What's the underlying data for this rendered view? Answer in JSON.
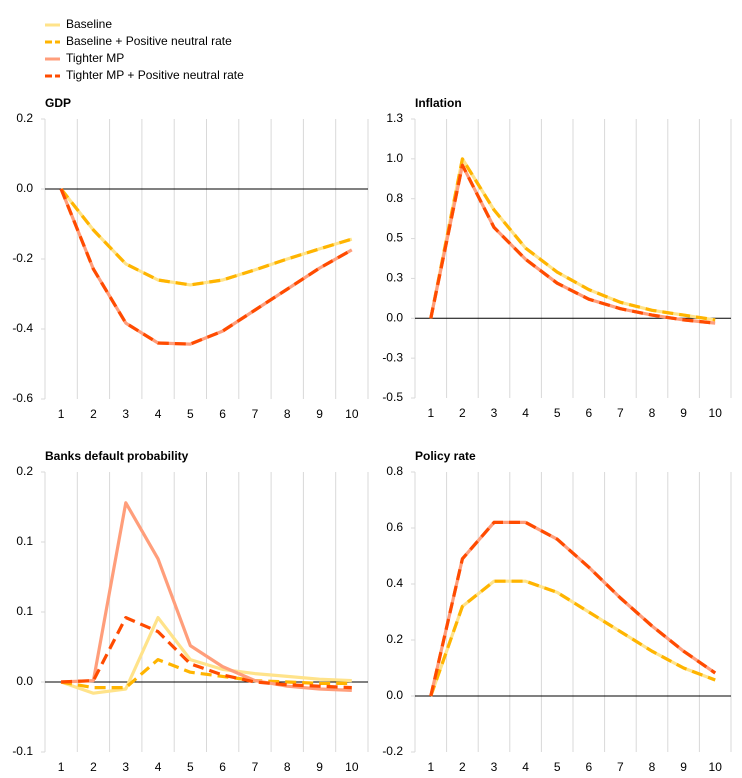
{
  "chart_data": [
    {
      "type": "line",
      "title": "GDP",
      "categories": [
        1,
        2,
        3,
        4,
        5,
        6,
        7,
        8,
        9,
        10
      ],
      "ylim": [
        -0.6,
        0.2
      ],
      "yticks": [
        -0.6,
        -0.4,
        -0.2,
        {
          "value": 0,
          "label": "0.0"
        },
        0.2
      ],
      "series": [
        {
          "name": "Baseline",
          "color": "#ffe38a",
          "dashed": false,
          "values": [
            0,
            -0.117,
            -0.214,
            -0.26,
            -0.274,
            -0.26,
            -0.231,
            -0.2,
            -0.171,
            -0.143
          ]
        },
        {
          "name": "Baseline + Positive neutral rate",
          "color": "#ffb400",
          "dashed": true,
          "values": [
            0,
            -0.117,
            -0.214,
            -0.26,
            -0.274,
            -0.26,
            -0.231,
            -0.2,
            -0.171,
            -0.143
          ]
        },
        {
          "name": "Tighter MP",
          "color": "#ff9e7b",
          "dashed": false,
          "values": [
            0,
            -0.229,
            -0.383,
            -0.44,
            -0.443,
            -0.406,
            -0.346,
            -0.286,
            -0.226,
            -0.174
          ]
        },
        {
          "name": "Tighter MP + Positive neutral rate",
          "color": "#ff4b00",
          "dashed": true,
          "values": [
            0,
            -0.229,
            -0.383,
            -0.44,
            -0.443,
            -0.406,
            -0.346,
            -0.286,
            -0.226,
            -0.174
          ]
        }
      ]
    },
    {
      "type": "line",
      "title": "Inflation",
      "categories": [
        1,
        2,
        3,
        4,
        5,
        6,
        7,
        8,
        9,
        10
      ],
      "ylim": [
        -0.5,
        1.25
      ],
      "yticks": [
        -0.5,
        {
          "value": -0.25,
          "label": "-0.3"
        },
        {
          "value": 0,
          "label": "0.0"
        },
        {
          "value": 0.25,
          "label": "0.3"
        },
        0.5,
        {
          "value": 0.75,
          "label": "0.8"
        },
        {
          "value": 1,
          "label": "1.0"
        },
        {
          "value": 1.25,
          "label": "1.3"
        }
      ],
      "series": [
        {
          "color": "#ffe38a",
          "dashed": false,
          "values": [
            0,
            1.0,
            0.68,
            0.44,
            0.29,
            0.18,
            0.1,
            0.05,
            0.02,
            -0.01
          ]
        },
        {
          "color": "#ffb400",
          "dashed": true,
          "values": [
            0,
            1.0,
            0.68,
            0.44,
            0.29,
            0.18,
            0.1,
            0.05,
            0.02,
            -0.01
          ]
        },
        {
          "color": "#ff9e7b",
          "dashed": false,
          "values": [
            0,
            0.96,
            0.57,
            0.37,
            0.22,
            0.12,
            0.06,
            0.02,
            -0.01,
            -0.03
          ]
        },
        {
          "color": "#ff4b00",
          "dashed": true,
          "values": [
            0,
            0.96,
            0.57,
            0.37,
            0.22,
            0.12,
            0.06,
            0.02,
            -0.01,
            -0.03
          ]
        }
      ]
    },
    {
      "type": "line",
      "title": "Banks default probability",
      "categories": [
        1,
        2,
        3,
        4,
        5,
        6,
        7,
        8,
        9,
        10
      ],
      "ylim": [
        -0.05,
        0.15
      ],
      "yticks": [
        {
          "value": -0.05,
          "label": "-0.1"
        },
        {
          "value": 0,
          "label": "0.0"
        },
        {
          "value": 0.05,
          "label": "0.1"
        },
        0.1,
        {
          "value": 0.15,
          "label": "0.2"
        }
      ],
      "series": [
        {
          "color": "#ffe38a",
          "dashed": false,
          "values": [
            0,
            -0.008,
            -0.005,
            0.046,
            0.016,
            0.009,
            0.006,
            0.004,
            0.002,
            0.001
          ]
        },
        {
          "color": "#ffb400",
          "dashed": true,
          "values": [
            0,
            -0.004,
            -0.004,
            0.016,
            0.007,
            0.004,
            0.001,
            0,
            -0.001,
            -0.001
          ]
        },
        {
          "color": "#ff9e7b",
          "dashed": false,
          "values": [
            0,
            0.001,
            0.128,
            0.088,
            0.026,
            0.011,
            0.001,
            -0.003,
            -0.005,
            -0.006
          ]
        },
        {
          "color": "#ff4b00",
          "dashed": true,
          "values": [
            0,
            0.001,
            0.046,
            0.036,
            0.013,
            0.005,
            0,
            -0.002,
            -0.003,
            -0.004
          ]
        }
      ]
    },
    {
      "type": "line",
      "title": "Policy rate",
      "categories": [
        1,
        2,
        3,
        4,
        5,
        6,
        7,
        8,
        9,
        10
      ],
      "ylim": [
        -0.2,
        0.8
      ],
      "yticks": [
        -0.2,
        {
          "value": 0,
          "label": "0.0"
        },
        0.2,
        0.4,
        0.6,
        0.8
      ],
      "series": [
        {
          "color": "#ffe38a",
          "dashed": false,
          "values": [
            0,
            0.32,
            0.41,
            0.41,
            0.37,
            0.3,
            0.23,
            0.16,
            0.1,
            0.057
          ]
        },
        {
          "color": "#ffb400",
          "dashed": true,
          "values": [
            0,
            0.32,
            0.41,
            0.41,
            0.37,
            0.3,
            0.23,
            0.16,
            0.1,
            0.057
          ]
        },
        {
          "color": "#ff9e7b",
          "dashed": false,
          "values": [
            0,
            0.49,
            0.62,
            0.62,
            0.56,
            0.46,
            0.35,
            0.25,
            0.16,
            0.082
          ]
        },
        {
          "color": "#ff4b00",
          "dashed": true,
          "values": [
            0,
            0.49,
            0.62,
            0.62,
            0.56,
            0.46,
            0.35,
            0.25,
            0.16,
            0.082
          ]
        }
      ]
    }
  ]
}
